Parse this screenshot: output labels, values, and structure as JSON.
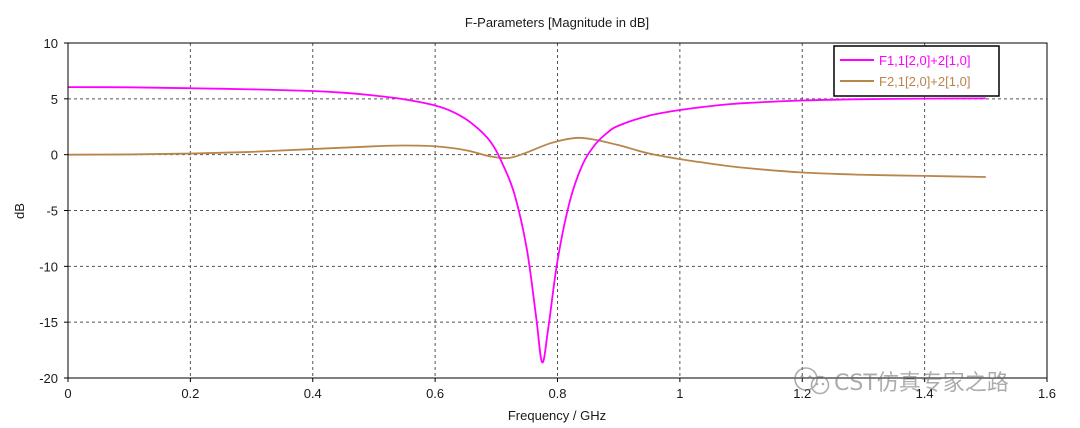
{
  "chart_data": {
    "type": "line",
    "title": "F-Parameters [Magnitude in dB]",
    "xlabel": "Frequency / GHz",
    "ylabel": "dB",
    "xlim": [
      0,
      1.6
    ],
    "ylim": [
      -20,
      10
    ],
    "xticks": [
      0,
      0.2,
      0.4,
      0.6,
      0.8,
      1,
      1.2,
      1.4,
      1.6
    ],
    "xtick_labels": [
      "0",
      "0.2",
      "0.4",
      "0.6",
      "0.8",
      "1",
      "1.2",
      "1.4",
      "1.6"
    ],
    "yticks": [
      10,
      5,
      0,
      -5,
      -10,
      -15,
      -20
    ],
    "ytick_labels": [
      "10",
      "5",
      "0",
      "-5",
      "-10",
      "-15",
      "-20"
    ],
    "grid": true,
    "legend_position": "top-right",
    "series": [
      {
        "name": "F1,1[2,0]+2[1,0]",
        "color": "#ff00ff",
        "points": [
          [
            0,
            6.05
          ],
          [
            0.1,
            6.03
          ],
          [
            0.2,
            5.95
          ],
          [
            0.3,
            5.85
          ],
          [
            0.4,
            5.7
          ],
          [
            0.45,
            5.55
          ],
          [
            0.5,
            5.3
          ],
          [
            0.55,
            4.95
          ],
          [
            0.6,
            4.4
          ],
          [
            0.63,
            3.8
          ],
          [
            0.66,
            2.8
          ],
          [
            0.69,
            1.2
          ],
          [
            0.71,
            -0.8
          ],
          [
            0.73,
            -3.6
          ],
          [
            0.75,
            -8.5
          ],
          [
            0.765,
            -14.5
          ],
          [
            0.775,
            -18.6
          ],
          [
            0.785,
            -15.5
          ],
          [
            0.8,
            -9.5
          ],
          [
            0.82,
            -4.2
          ],
          [
            0.84,
            -1.0
          ],
          [
            0.86,
            0.8
          ],
          [
            0.88,
            1.9
          ],
          [
            0.9,
            2.6
          ],
          [
            0.95,
            3.5
          ],
          [
            1.0,
            4.0
          ],
          [
            1.05,
            4.35
          ],
          [
            1.1,
            4.6
          ],
          [
            1.2,
            4.85
          ],
          [
            1.3,
            4.97
          ],
          [
            1.4,
            5.02
          ],
          [
            1.5,
            5.04
          ]
        ]
      },
      {
        "name": "F2,1[2,0]+2[1,0]",
        "color": "#b8864b",
        "points": [
          [
            0,
            0.0
          ],
          [
            0.1,
            0.02
          ],
          [
            0.2,
            0.1
          ],
          [
            0.3,
            0.25
          ],
          [
            0.4,
            0.5
          ],
          [
            0.5,
            0.75
          ],
          [
            0.55,
            0.82
          ],
          [
            0.6,
            0.75
          ],
          [
            0.65,
            0.4
          ],
          [
            0.69,
            -0.15
          ],
          [
            0.72,
            -0.3
          ],
          [
            0.75,
            0.2
          ],
          [
            0.79,
            1.05
          ],
          [
            0.83,
            1.5
          ],
          [
            0.86,
            1.35
          ],
          [
            0.9,
            0.85
          ],
          [
            0.95,
            0.1
          ],
          [
            1.0,
            -0.4
          ],
          [
            1.05,
            -0.8
          ],
          [
            1.1,
            -1.15
          ],
          [
            1.2,
            -1.6
          ],
          [
            1.3,
            -1.8
          ],
          [
            1.4,
            -1.9
          ],
          [
            1.5,
            -2.0
          ]
        ]
      }
    ]
  },
  "watermark": {
    "text": "CST仿真专家之路",
    "icon": "wechat-icon"
  }
}
